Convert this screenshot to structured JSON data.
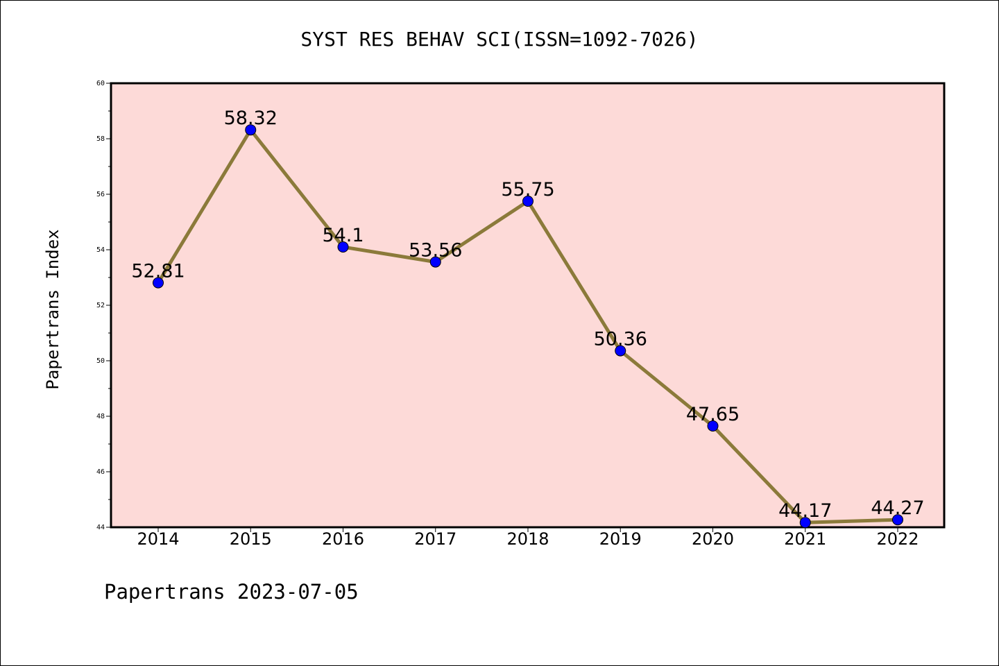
{
  "chart_data": {
    "type": "line",
    "title": "SYST RES BEHAV SCI(ISSN=1092-7026)",
    "ylabel": "Papertrans Index",
    "xlabel": "",
    "categories": [
      "2014",
      "2015",
      "2016",
      "2017",
      "2018",
      "2019",
      "2020",
      "2021",
      "2022"
    ],
    "values": [
      52.81,
      58.32,
      54.1,
      53.56,
      55.75,
      50.36,
      47.65,
      44.17,
      44.27
    ],
    "data_labels": [
      "52.81",
      "58.32",
      "54.1",
      "53.56",
      "55.75",
      "50.36",
      "47.65",
      "44.17",
      "44.27"
    ],
    "ylim": [
      44,
      60
    ],
    "yticks": [
      44,
      46,
      48,
      50,
      52,
      54,
      56,
      58,
      60
    ],
    "grid": false,
    "colors": {
      "plot_background": "#fddad8",
      "line": "#8b7a3a",
      "marker": "#0000ff"
    }
  },
  "footer": {
    "text": "Papertrans 2023-07-05"
  }
}
